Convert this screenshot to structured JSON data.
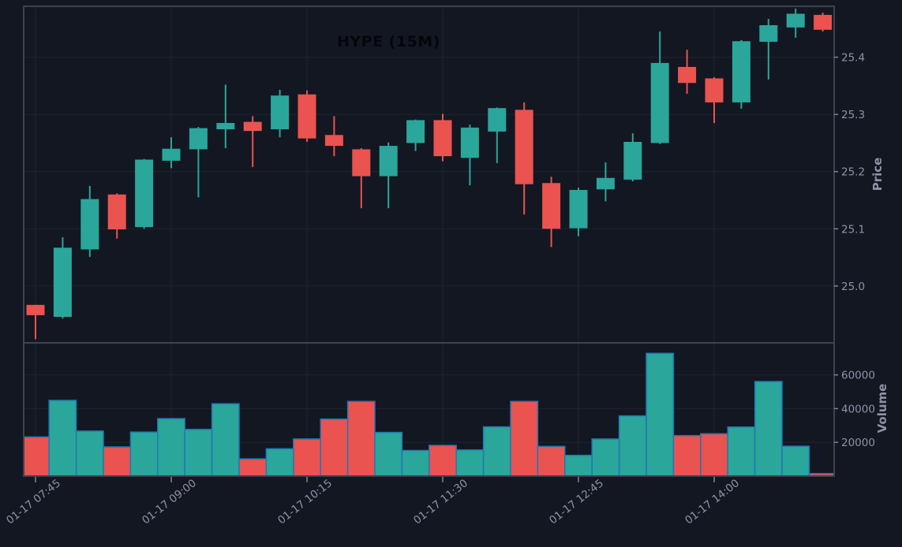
{
  "page": {
    "background": "#131722"
  },
  "chart": {
    "title": "HYPE (15M)",
    "title_color": "#04060b",
    "price_axis": {
      "label": "Price",
      "ticks": [
        25.0,
        25.1,
        25.2,
        25.3,
        25.4
      ]
    },
    "volume_axis": {
      "label": "Volume",
      "ticks": [
        20000,
        40000,
        60000
      ]
    },
    "x_axis": {
      "tick_labels": [
        "01-17 07:45",
        "01-17 09:00",
        "01-17 10:15",
        "01-17 11:30",
        "01-17 12:45",
        "01-17 14:00"
      ],
      "tick_indices": [
        0,
        5,
        10,
        15,
        20,
        25
      ]
    },
    "colors": {
      "grid": "#1e2430",
      "panel_border": "#3d4250",
      "tick_label": "#8c93a4",
      "tick_mark": "#7e8596"
    }
  },
  "chart_data": {
    "type": "candlestick",
    "symbol": "HYPE",
    "timeframe": "15M",
    "title": "HYPE (15M)",
    "ylabel_price": "Price",
    "ylabel_volume": "Volume",
    "legend_position": "none",
    "grid": true,
    "price_range": [
      24.902,
      25.489
    ],
    "volume_range": [
      0,
      79000
    ],
    "x": [
      "01-17 07:45",
      "01-17 08:00",
      "01-17 08:15",
      "01-17 08:30",
      "01-17 08:45",
      "01-17 09:00",
      "01-17 09:15",
      "01-17 09:30",
      "01-17 09:45",
      "01-17 10:00",
      "01-17 10:15",
      "01-17 10:30",
      "01-17 10:45",
      "01-17 11:00",
      "01-17 11:15",
      "01-17 11:30",
      "01-17 11:45",
      "01-17 12:00",
      "01-17 12:15",
      "01-17 12:30",
      "01-17 12:45",
      "01-17 13:00",
      "01-17 13:15",
      "01-17 13:30",
      "01-17 13:45",
      "01-17 14:00",
      "01-17 14:15",
      "01-17 14:30",
      "01-17 14:45",
      "01-17 15:00"
    ],
    "open": [
      24.967,
      24.946,
      25.064,
      25.16,
      25.103,
      25.219,
      25.239,
      25.274,
      25.287,
      25.274,
      25.335,
      25.264,
      25.239,
      25.192,
      25.25,
      25.29,
      25.224,
      25.27,
      25.308,
      25.18,
      25.101,
      25.169,
      25.186,
      25.25,
      25.383,
      25.363,
      25.321,
      25.427,
      25.452,
      25.474
    ],
    "high": [
      24.967,
      25.085,
      25.175,
      25.162,
      25.222,
      25.26,
      25.278,
      25.352,
      25.297,
      25.343,
      25.342,
      25.297,
      25.241,
      25.251,
      25.291,
      25.301,
      25.282,
      25.312,
      25.321,
      25.191,
      25.172,
      25.216,
      25.267,
      25.445,
      25.413,
      25.365,
      25.43,
      25.467,
      25.485,
      25.478
    ],
    "low": [
      24.907,
      24.943,
      25.051,
      25.083,
      25.1,
      25.206,
      25.155,
      25.241,
      25.208,
      25.26,
      25.252,
      25.227,
      25.136,
      25.136,
      25.236,
      25.218,
      25.176,
      25.215,
      25.125,
      25.068,
      25.087,
      25.148,
      25.183,
      25.248,
      25.336,
      25.285,
      25.31,
      25.361,
      25.434,
      25.445
    ],
    "close": [
      24.949,
      25.067,
      25.152,
      25.099,
      25.221,
      25.24,
      25.276,
      25.285,
      25.271,
      25.333,
      25.258,
      25.245,
      25.192,
      25.245,
      25.29,
      25.227,
      25.277,
      25.311,
      25.178,
      25.1,
      25.168,
      25.189,
      25.252,
      25.39,
      25.355,
      25.321,
      25.428,
      25.456,
      25.476,
      25.448
    ],
    "volume": [
      23200,
      44900,
      26700,
      17300,
      26100,
      34100,
      27700,
      42900,
      10200,
      16200,
      22000,
      33800,
      44300,
      25900,
      15200,
      18200,
      15500,
      29200,
      44300,
      17600,
      12300,
      22000,
      35700,
      72800,
      24000,
      25100,
      29100,
      56100,
      17700,
      1500
    ],
    "up_color": "#2aa69a",
    "down_color": "#ea5350",
    "volume_bar_border": "#1f77b4"
  }
}
